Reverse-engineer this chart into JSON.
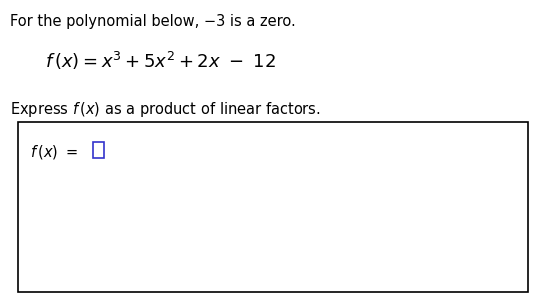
{
  "bg_color": "#ffffff",
  "text_color": "#000000",
  "line1_fontsize": 10.5,
  "formula_fontsize": 13,
  "line3_fontsize": 10.5,
  "answer_fontsize": 10.5,
  "cursor_color": "#3333cc",
  "box_edge_color": "#000000",
  "fig_width": 5.39,
  "fig_height": 3.02,
  "dpi": 100
}
